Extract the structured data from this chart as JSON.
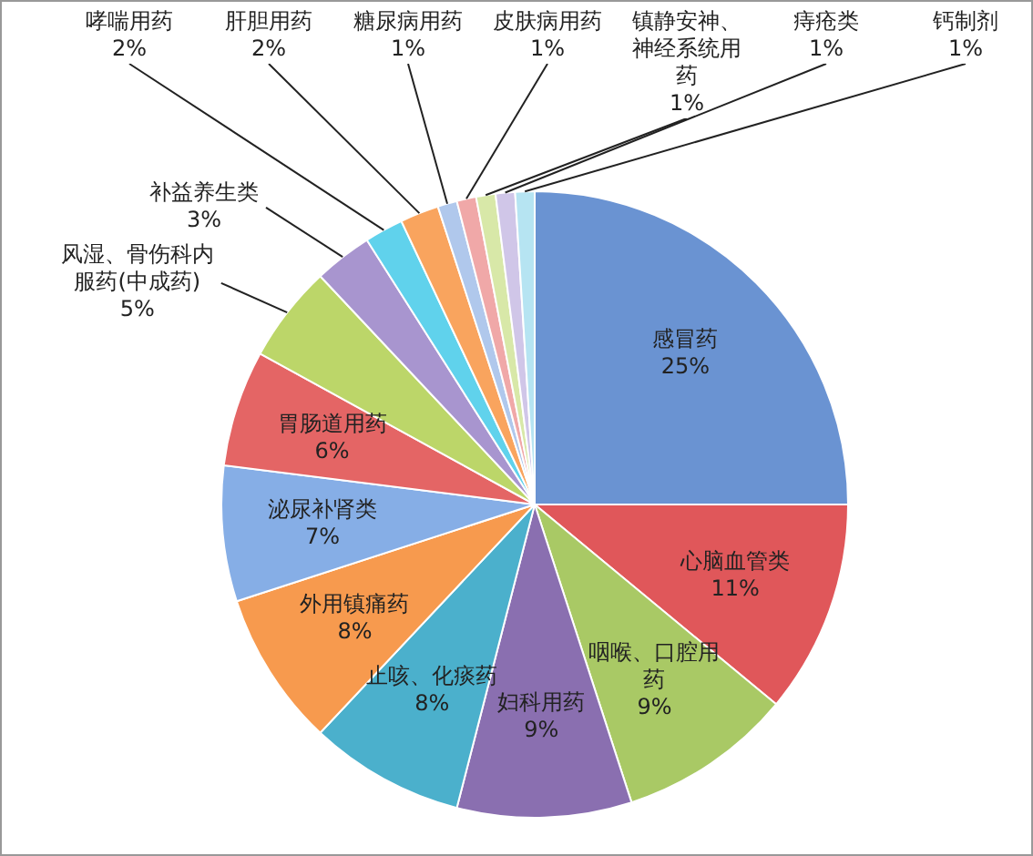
{
  "chart_data": {
    "type": "pie",
    "categories": [
      "感冒药",
      "心脑血管类",
      "咽喉、口腔用药",
      "妇科用药",
      "止咳、化痰药",
      "外用镇痛药",
      "泌尿补肾类",
      "胃肠道用药",
      "风湿、骨伤科内服药(中成药)",
      "补益养生类",
      "哮喘用药",
      "肝胆用药",
      "糖尿病用药",
      "皮肤病用药",
      "镇静安神、神经系统用药",
      "痔疮类",
      "钙制剂"
    ],
    "values": [
      25,
      11,
      9,
      9,
      8,
      8,
      7,
      6,
      5,
      3,
      2,
      2,
      1,
      1,
      1,
      1,
      1
    ],
    "value_labels": [
      "25%",
      "11%",
      "9%",
      "9%",
      "8%",
      "8%",
      "7%",
      "6%",
      "5%",
      "3%",
      "2%",
      "2%",
      "1%",
      "1%",
      "1%",
      "1%",
      "1%"
    ],
    "colors": [
      "#6a93d2",
      "#e0575a",
      "#a9c965",
      "#8a6fb0",
      "#4bb0cc",
      "#f79a4e",
      "#86aee6",
      "#e46565",
      "#bcd669",
      "#a895cf",
      "#60d2ec",
      "#f9a45e",
      "#b0c8ec",
      "#f0a8a8",
      "#d8e8a8",
      "#d0c6e8",
      "#b6e4f2"
    ],
    "legend": false
  }
}
